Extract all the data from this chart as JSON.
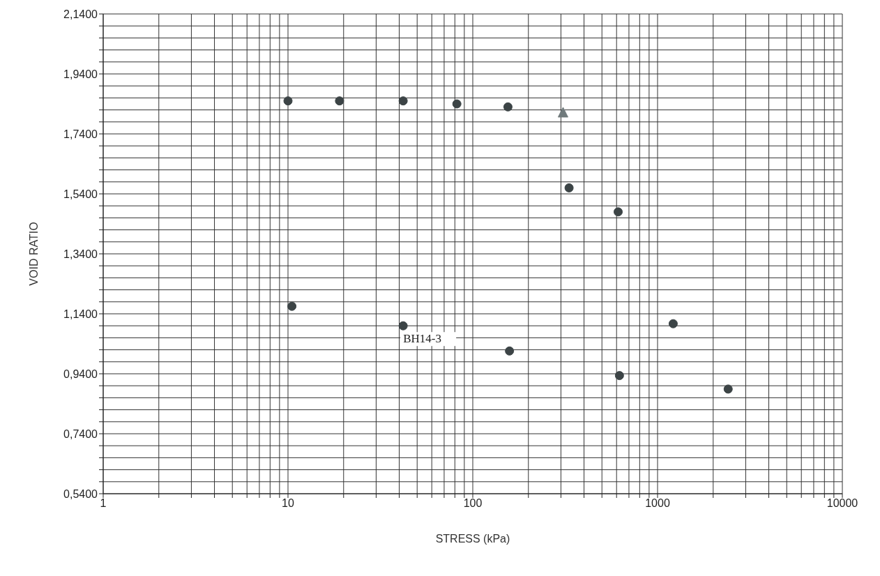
{
  "chart_data": {
    "type": "scatter",
    "xlabel": "STRESS (kPa)",
    "ylabel": "VOID RATIO",
    "log": "x",
    "grid": true,
    "marker": "circle",
    "xlim": [
      1,
      10000
    ],
    "xticks": [
      {
        "value": 1,
        "label": "1"
      },
      {
        "value": 2,
        "label": null
      },
      {
        "value": 3,
        "label": null
      },
      {
        "value": 4,
        "label": null
      },
      {
        "value": 5,
        "label": null
      },
      {
        "value": 6,
        "label": null
      },
      {
        "value": 7,
        "label": null
      },
      {
        "value": 8,
        "label": null
      },
      {
        "value": 9,
        "label": null
      },
      {
        "value": 10,
        "label": "10"
      },
      {
        "value": 20,
        "label": null
      },
      {
        "value": 30,
        "label": null
      },
      {
        "value": 40,
        "label": null
      },
      {
        "value": 50,
        "label": null
      },
      {
        "value": 60,
        "label": null
      },
      {
        "value": 70,
        "label": null
      },
      {
        "value": 80,
        "label": null
      },
      {
        "value": 90,
        "label": null
      },
      {
        "value": 100,
        "label": "100"
      },
      {
        "value": 200,
        "label": null
      },
      {
        "value": 300,
        "label": null
      },
      {
        "value": 400,
        "label": null
      },
      {
        "value": 500,
        "label": null
      },
      {
        "value": 600,
        "label": null
      },
      {
        "value": 700,
        "label": null
      },
      {
        "value": 800,
        "label": null
      },
      {
        "value": 900,
        "label": null
      },
      {
        "value": 1000,
        "label": "1000"
      },
      {
        "value": 2000,
        "label": null
      },
      {
        "value": 3000,
        "label": null
      },
      {
        "value": 4000,
        "label": null
      },
      {
        "value": 5000,
        "label": null
      },
      {
        "value": 6000,
        "label": null
      },
      {
        "value": 7000,
        "label": null
      },
      {
        "value": 8000,
        "label": null
      },
      {
        "value": 9000,
        "label": null
      },
      {
        "value": 10000,
        "label": "10000"
      }
    ],
    "ylim": [
      0.54,
      2.14
    ],
    "yticks": [
      {
        "value": 0.54,
        "label": "0,5400"
      },
      {
        "value": 0.58,
        "label": null
      },
      {
        "value": 0.62,
        "label": null
      },
      {
        "value": 0.66,
        "label": null
      },
      {
        "value": 0.7,
        "label": null
      },
      {
        "value": 0.74,
        "label": "0,7400"
      },
      {
        "value": 0.78,
        "label": null
      },
      {
        "value": 0.82,
        "label": null
      },
      {
        "value": 0.86,
        "label": null
      },
      {
        "value": 0.9,
        "label": null
      },
      {
        "value": 0.94,
        "label": "0,9400"
      },
      {
        "value": 0.98,
        "label": null
      },
      {
        "value": 1.02,
        "label": null
      },
      {
        "value": 1.06,
        "label": null
      },
      {
        "value": 1.1,
        "label": null
      },
      {
        "value": 1.14,
        "label": "1,1400"
      },
      {
        "value": 1.18,
        "label": null
      },
      {
        "value": 1.22,
        "label": null
      },
      {
        "value": 1.26,
        "label": null
      },
      {
        "value": 1.3,
        "label": null
      },
      {
        "value": 1.34,
        "label": "1,3400"
      },
      {
        "value": 1.38,
        "label": null
      },
      {
        "value": 1.42,
        "label": null
      },
      {
        "value": 1.46,
        "label": null
      },
      {
        "value": 1.5,
        "label": null
      },
      {
        "value": 1.54,
        "label": "1,5400"
      },
      {
        "value": 1.58,
        "label": null
      },
      {
        "value": 1.62,
        "label": null
      },
      {
        "value": 1.66,
        "label": null
      },
      {
        "value": 1.7,
        "label": null
      },
      {
        "value": 1.74,
        "label": "1,7400"
      },
      {
        "value": 1.78,
        "label": null
      },
      {
        "value": 1.82,
        "label": null
      },
      {
        "value": 1.86,
        "label": null
      },
      {
        "value": 1.9,
        "label": null
      },
      {
        "value": 1.94,
        "label": "1,9400"
      },
      {
        "value": 1.98,
        "label": null
      },
      {
        "value": 2.02,
        "label": null
      },
      {
        "value": 2.06,
        "label": null
      },
      {
        "value": 2.1,
        "label": null
      },
      {
        "value": 2.14,
        "label": "2,1400"
      }
    ],
    "series": [
      {
        "color": "#3c4446",
        "x": [
          10,
          19,
          42,
          82,
          155,
          332,
          612,
          10.5,
          42,
          158,
          622,
          1215,
          2410
        ],
        "values": [
          1.85,
          1.85,
          1.85,
          1.84,
          1.83,
          1.56,
          1.48,
          1.165,
          1.1,
          1.016,
          0.934,
          1.107,
          0.889
        ]
      },
      {
        "color": "#707a7c",
        "marker": "triangle",
        "x": [
          308
        ],
        "values": [
          1.81
        ]
      }
    ],
    "annotations": [
      {
        "text": "BH14-3",
        "x": 42,
        "y": 1.1
      }
    ]
  }
}
